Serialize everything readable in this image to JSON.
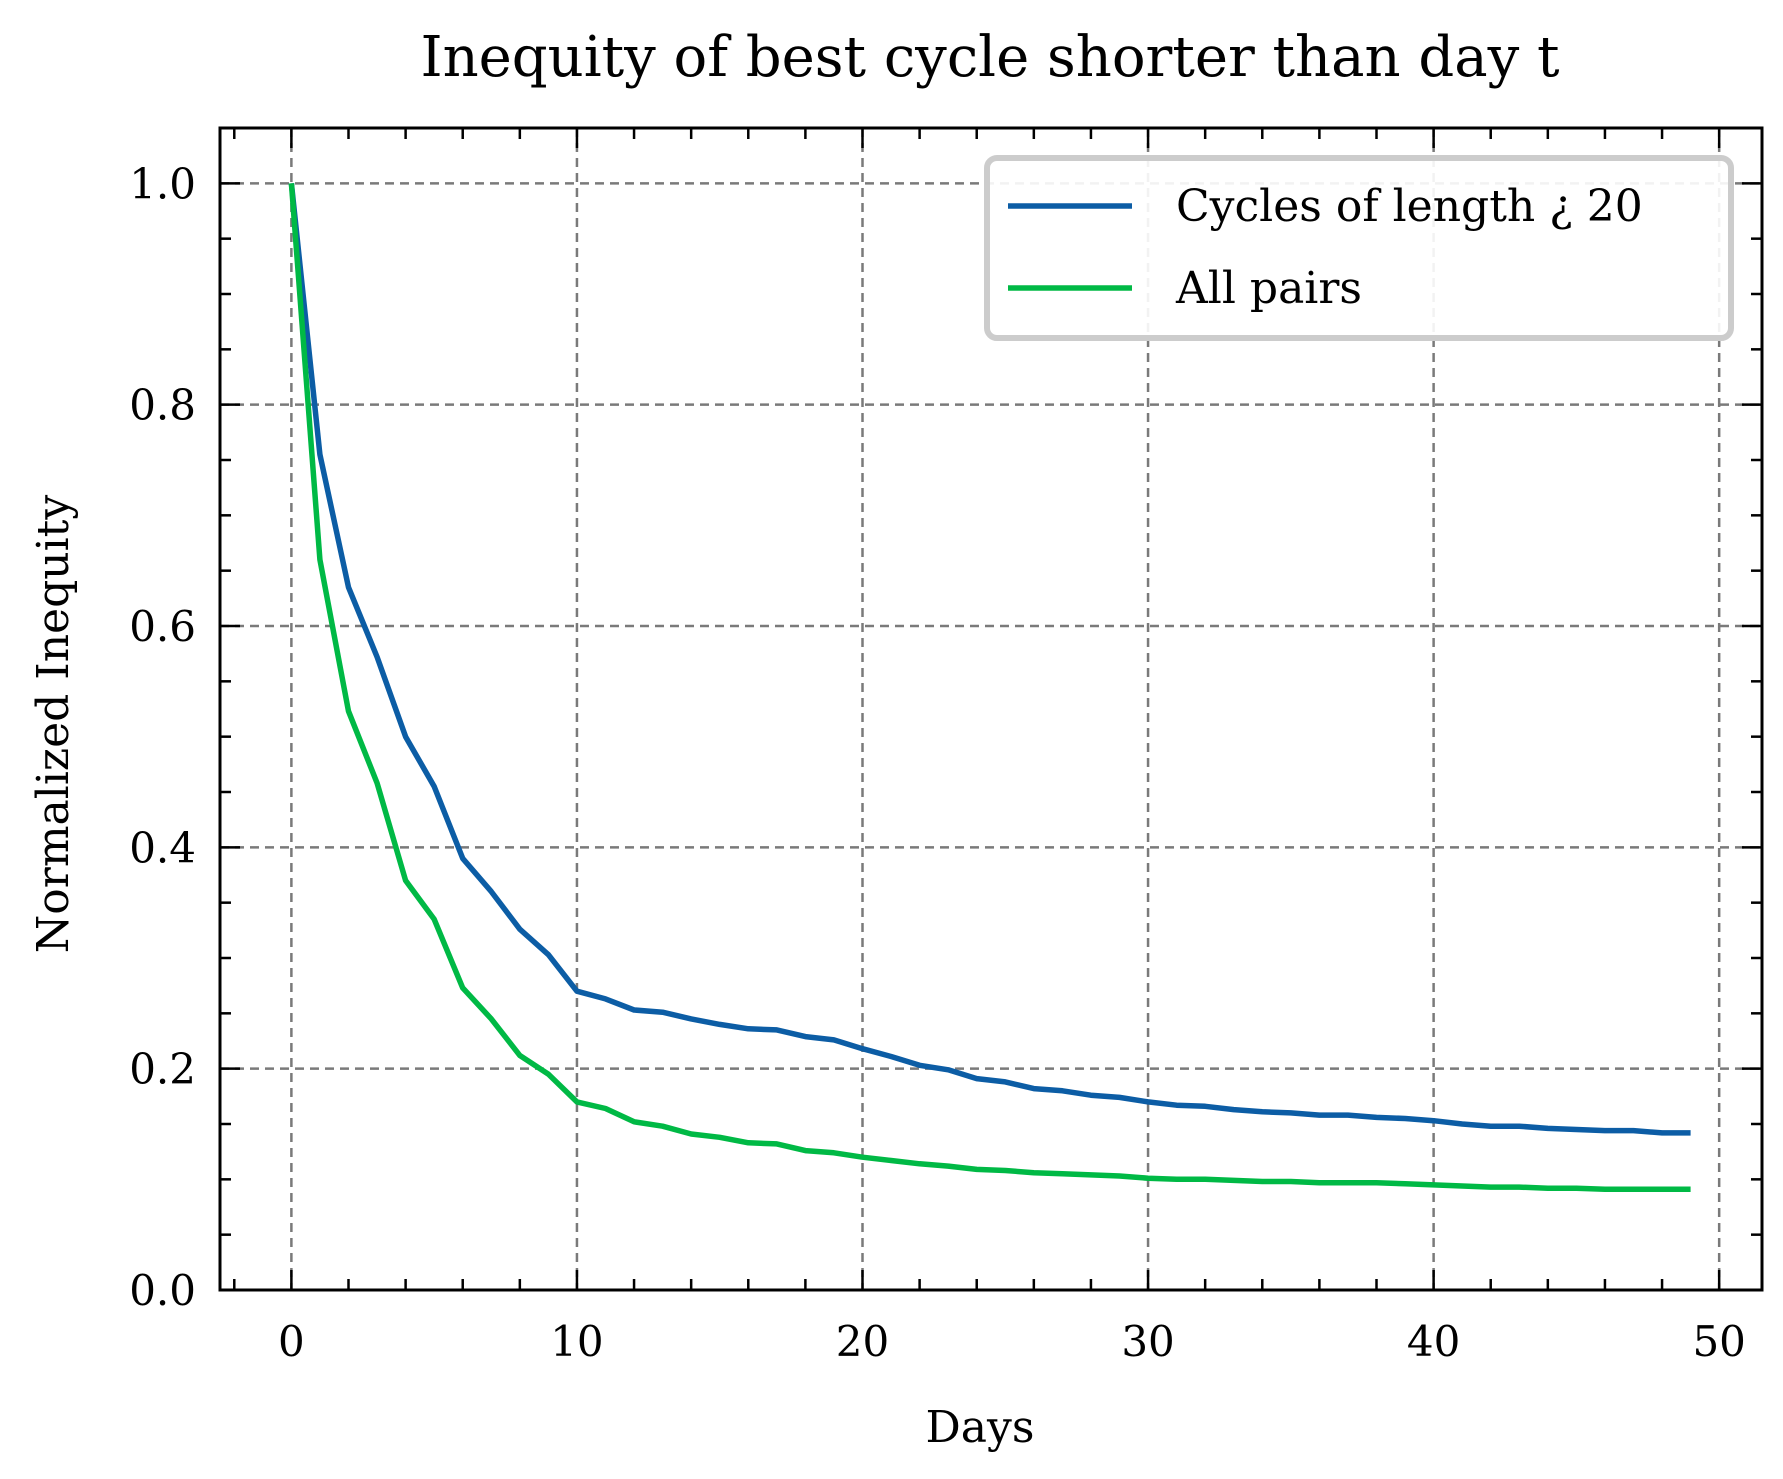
{
  "chart_data": {
    "type": "line",
    "title": "Inequity of best cycle shorter than day t",
    "xlabel": "Days",
    "ylabel": "Normalized Inequity",
    "xlim": [
      -2.5,
      51.5
    ],
    "ylim": [
      0.0,
      1.05
    ],
    "xticks": [
      0,
      10,
      20,
      30,
      40,
      50
    ],
    "xtick_labels": [
      "0",
      "10",
      "20",
      "30",
      "40",
      "50"
    ],
    "yticks": [
      0.0,
      0.2,
      0.4,
      0.6,
      0.8,
      1.0
    ],
    "ytick_labels": [
      "0.0",
      "0.2",
      "0.4",
      "0.6",
      "0.8",
      "1.0"
    ],
    "grid": true,
    "legend_position": "top-right",
    "x": [
      0,
      1,
      2,
      3,
      4,
      5,
      6,
      7,
      8,
      9,
      10,
      11,
      12,
      13,
      14,
      15,
      16,
      17,
      18,
      19,
      20,
      21,
      22,
      23,
      24,
      25,
      26,
      27,
      28,
      29,
      30,
      31,
      32,
      33,
      34,
      35,
      36,
      37,
      38,
      39,
      40,
      41,
      42,
      43,
      44,
      45,
      46,
      47,
      48,
      49
    ],
    "series": [
      {
        "name": "Cycles of length ¿ 20",
        "color": "#0C5DA5",
        "values": [
          1.0,
          0.755,
          0.635,
          0.572,
          0.5,
          0.455,
          0.39,
          0.36,
          0.326,
          0.303,
          0.27,
          0.263,
          0.253,
          0.251,
          0.245,
          0.24,
          0.236,
          0.235,
          0.229,
          0.226,
          0.218,
          0.211,
          0.203,
          0.199,
          0.191,
          0.188,
          0.182,
          0.18,
          0.176,
          0.174,
          0.17,
          0.167,
          0.166,
          0.163,
          0.161,
          0.16,
          0.158,
          0.158,
          0.156,
          0.155,
          0.153,
          0.15,
          0.148,
          0.148,
          0.146,
          0.145,
          0.144,
          0.144,
          0.142,
          0.142
        ]
      },
      {
        "name": "All pairs",
        "color": "#00B945",
        "values": [
          1.0,
          0.66,
          0.523,
          0.458,
          0.37,
          0.335,
          0.273,
          0.245,
          0.212,
          0.195,
          0.17,
          0.164,
          0.152,
          0.148,
          0.141,
          0.138,
          0.133,
          0.132,
          0.126,
          0.124,
          0.12,
          0.117,
          0.114,
          0.112,
          0.109,
          0.108,
          0.106,
          0.105,
          0.104,
          0.103,
          0.101,
          0.1,
          0.1,
          0.099,
          0.098,
          0.098,
          0.097,
          0.097,
          0.097,
          0.096,
          0.095,
          0.094,
          0.093,
          0.093,
          0.092,
          0.092,
          0.091,
          0.091,
          0.091,
          0.091
        ]
      }
    ]
  }
}
